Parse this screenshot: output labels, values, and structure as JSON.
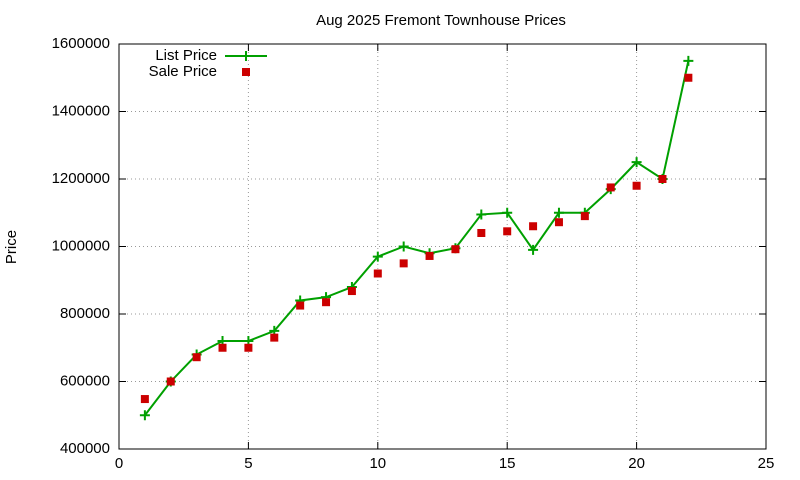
{
  "chart_data": {
    "type": "line",
    "title": "Aug 2025 Fremont Townhouse Prices",
    "y_label": "Price",
    "x": [
      1,
      2,
      3,
      4,
      5,
      6,
      7,
      8,
      9,
      10,
      11,
      12,
      13,
      14,
      15,
      16,
      17,
      18,
      19,
      20,
      21,
      22
    ],
    "series": [
      {
        "name": "List Price",
        "color": "#00a000",
        "marker": "plus",
        "values": [
          500000,
          600000,
          680000,
          720000,
          720000,
          750000,
          840000,
          850000,
          880000,
          970000,
          1000000,
          980000,
          995000,
          1095000,
          1100000,
          990000,
          1100000,
          1100000,
          1170000,
          1250000,
          1200000,
          1550000
        ]
      },
      {
        "name": "Sale Price",
        "color": "#cc0000",
        "marker": "square",
        "values": [
          548000,
          600000,
          672000,
          700000,
          700000,
          730000,
          825000,
          835000,
          868000,
          920000,
          950000,
          972000,
          992000,
          1040000,
          1045000,
          1060000,
          1072000,
          1090000,
          1175000,
          1180000,
          1200000,
          1500000
        ]
      }
    ],
    "xlim": [
      0,
      25
    ],
    "xticks": [
      0,
      5,
      10,
      15,
      20,
      25
    ],
    "ylim": [
      400000,
      1600000
    ],
    "yticks": [
      400000,
      600000,
      800000,
      1000000,
      1200000,
      1400000,
      1600000
    ],
    "grid": true,
    "legend": "upper-left"
  }
}
